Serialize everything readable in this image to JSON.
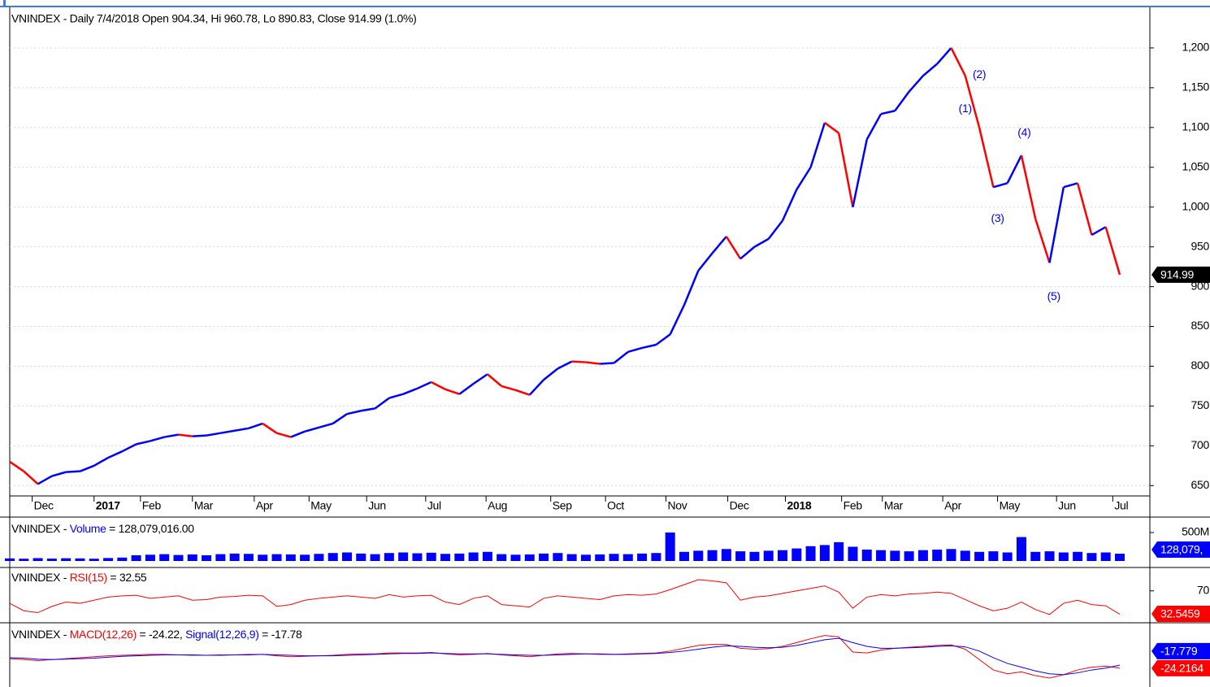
{
  "chart_data": [
    {
      "type": "line",
      "title": "VNINDEX - Daily 7/4/2018 Open 904.34, Hi 960.78, Lo 890.83, Close 914.99 (1.0%)",
      "values": [
        680,
        668,
        652,
        662,
        667,
        668,
        675,
        685,
        693,
        702,
        706,
        711,
        714,
        712,
        713,
        716,
        719,
        722,
        728,
        716,
        711,
        718,
        723,
        728,
        740,
        744,
        747,
        760,
        765,
        772,
        780,
        771,
        765,
        778,
        790,
        775,
        770,
        764,
        783,
        797,
        806,
        805,
        803,
        804,
        818,
        823,
        827,
        840,
        877,
        920,
        942,
        963,
        935,
        950,
        960,
        983,
        1022,
        1050,
        1106,
        1093,
        1000,
        1085,
        1117,
        1121,
        1145,
        1165,
        1180,
        1200,
        1165,
        1100,
        1025,
        1030,
        1065,
        985,
        930,
        1025,
        1030,
        965,
        975,
        914.99
      ],
      "up_color": "#0000ff",
      "down_color": "#ff0000",
      "last_label": "914.99",
      "xlim": [
        0,
        81.14
      ],
      "xticks": [
        {
          "value": 1.6,
          "label": "Dec"
        },
        {
          "value": 6.0,
          "label": "2017"
        },
        {
          "value": 9.3,
          "label": "Feb"
        },
        {
          "value": 13.0,
          "label": "Mar"
        },
        {
          "value": 17.4,
          "label": "Apr"
        },
        {
          "value": 21.3,
          "label": "May"
        },
        {
          "value": 25.4,
          "label": "Jun"
        },
        {
          "value": 29.6,
          "label": "Jul"
        },
        {
          "value": 33.9,
          "label": "Aug"
        },
        {
          "value": 38.5,
          "label": "Sep"
        },
        {
          "value": 42.4,
          "label": "Oct"
        },
        {
          "value": 46.7,
          "label": "Nov"
        },
        {
          "value": 51.1,
          "label": "Dec"
        },
        {
          "value": 55.2,
          "label": "2018"
        },
        {
          "value": 59.2,
          "label": "Feb"
        },
        {
          "value": 62.1,
          "label": "Mar"
        },
        {
          "value": 66.4,
          "label": "Apr"
        },
        {
          "value": 70.3,
          "label": "May"
        },
        {
          "value": 74.5,
          "label": "Jun"
        },
        {
          "value": 78.5,
          "label": "Jul"
        }
      ],
      "ylim": [
        637,
        1250
      ],
      "yticks": [
        650,
        700,
        750,
        800,
        850,
        900,
        950,
        {
          "value": 1000,
          "label": "1,000"
        },
        {
          "value": 1050,
          "label": "1,050"
        },
        {
          "value": 1100,
          "label": "1,100"
        },
        {
          "value": 1150,
          "label": "1,150"
        },
        {
          "value": 1200,
          "label": "1,200"
        }
      ],
      "grid": true,
      "annotations": [
        {
          "label": "(1)",
          "x": 68,
          "y": 1123
        },
        {
          "label": "(2)",
          "x": 69,
          "y": 1166
        },
        {
          "label": "(3)",
          "x": 70.3,
          "y": 985
        },
        {
          "label": "(4)",
          "x": 72.2,
          "y": 1093
        },
        {
          "label": "(5)",
          "x": 74.3,
          "y": 887
        }
      ]
    },
    {
      "type": "bar",
      "header": [
        {
          "text": "VNINDEX - ",
          "color": "#000000"
        },
        {
          "text": "Volume",
          "color": "#0000ff"
        },
        {
          "text": " = 128,079,016.00",
          "color": "#000000"
        }
      ],
      "values": [
        45000000,
        40000000,
        50000000,
        42000000,
        48000000,
        45000000,
        40000000,
        52000000,
        60000000,
        100000000,
        110000000,
        120000000,
        105000000,
        115000000,
        100000000,
        120000000,
        130000000,
        125000000,
        110000000,
        120000000,
        115000000,
        110000000,
        125000000,
        140000000,
        150000000,
        130000000,
        120000000,
        140000000,
        150000000,
        135000000,
        145000000,
        125000000,
        130000000,
        150000000,
        160000000,
        120000000,
        110000000,
        115000000,
        130000000,
        140000000,
        120000000,
        110000000,
        115000000,
        125000000,
        120000000,
        130000000,
        140000000,
        500000000,
        160000000,
        180000000,
        190000000,
        210000000,
        170000000,
        160000000,
        180000000,
        190000000,
        220000000,
        260000000,
        280000000,
        330000000,
        250000000,
        200000000,
        190000000,
        180000000,
        170000000,
        190000000,
        200000000,
        210000000,
        180000000,
        160000000,
        170000000,
        150000000,
        420000000,
        160000000,
        170000000,
        150000000,
        160000000,
        140000000,
        150000000,
        128079016
      ],
      "color": "#0000ff",
      "last_label": "128,079,",
      "ylim": [
        0,
        714000000
      ],
      "yticks": [
        {
          "value": 500000000,
          "label": "500M"
        }
      ]
    },
    {
      "type": "line",
      "header": [
        {
          "text": "VNINDEX - ",
          "color": "#000000"
        },
        {
          "text": "RSI(15)",
          "color": "#ff0000"
        },
        {
          "text": " = 32.55",
          "color": "#000000"
        }
      ],
      "values": [
        50,
        38,
        35,
        45,
        52,
        50,
        55,
        60,
        62,
        63,
        58,
        60,
        62,
        55,
        56,
        60,
        61,
        63,
        62,
        45,
        48,
        55,
        58,
        60,
        62,
        60,
        58,
        64,
        60,
        62,
        63,
        52,
        48,
        58,
        62,
        48,
        46,
        44,
        58,
        62,
        60,
        58,
        56,
        62,
        64,
        63,
        65,
        72,
        80,
        88,
        86,
        83,
        55,
        60,
        62,
        66,
        70,
        74,
        78,
        68,
        42,
        60,
        64,
        62,
        65,
        66,
        68,
        66,
        56,
        46,
        38,
        42,
        52,
        40,
        32,
        50,
        55,
        48,
        46,
        32.5459
      ],
      "color": "#ff0000",
      "last_label": "32.5459",
      "ylim": [
        20,
        105
      ],
      "yticks": [
        70
      ]
    },
    {
      "type": "line",
      "header": [
        {
          "text": "VNINDEX - ",
          "color": "#000000"
        },
        {
          "text": "MACD(12,26)",
          "color": "#ff0000"
        },
        {
          "text": " = -24.22, ",
          "color": "#000000"
        },
        {
          "text": "Signal(12,26,9)",
          "color": "#0000ff"
        },
        {
          "text": " = -17.78",
          "color": "#000000"
        }
      ],
      "series": [
        {
          "color": "#ff0000",
          "last_label": "-24.2164",
          "values": [
            -4,
            -6,
            -8,
            -6,
            -4,
            -2,
            0,
            2,
            3,
            4,
            5,
            5,
            4,
            3,
            3,
            4,
            4,
            5,
            5,
            2,
            0,
            1,
            2,
            3,
            5,
            6,
            6,
            8,
            8,
            8,
            9,
            6,
            4,
            5,
            7,
            4,
            2,
            0,
            3,
            6,
            7,
            6,
            5,
            5,
            6,
            7,
            8,
            12,
            18,
            24,
            26,
            26,
            18,
            16,
            17,
            22,
            30,
            38,
            45,
            42,
            10,
            8,
            14,
            18,
            20,
            22,
            24,
            25,
            16,
            -6,
            -28,
            -36,
            -32,
            -40,
            -45,
            -38,
            -28,
            -22,
            -20,
            -24.2164
          ]
        },
        {
          "color": "#0000ff",
          "last_label": "-17.779",
          "values": [
            -2,
            -3,
            -5,
            -6,
            -5,
            -4,
            -3,
            -1,
            1,
            2,
            3,
            4,
            4,
            4,
            3,
            3,
            4,
            4,
            5,
            4,
            3,
            2,
            2,
            2,
            3,
            4,
            5,
            6,
            7,
            7,
            8,
            7,
            6,
            6,
            6,
            5,
            4,
            3,
            3,
            4,
            5,
            6,
            6,
            5,
            5,
            6,
            7,
            9,
            12,
            16,
            20,
            23,
            22,
            20,
            19,
            20,
            24,
            30,
            36,
            39,
            30,
            22,
            18,
            18,
            19,
            20,
            22,
            23,
            21,
            12,
            -2,
            -14,
            -22,
            -30,
            -36,
            -38,
            -34,
            -28,
            -24,
            -17.779
          ]
        }
      ],
      "ylim": [
        -64,
        65
      ]
    }
  ]
}
